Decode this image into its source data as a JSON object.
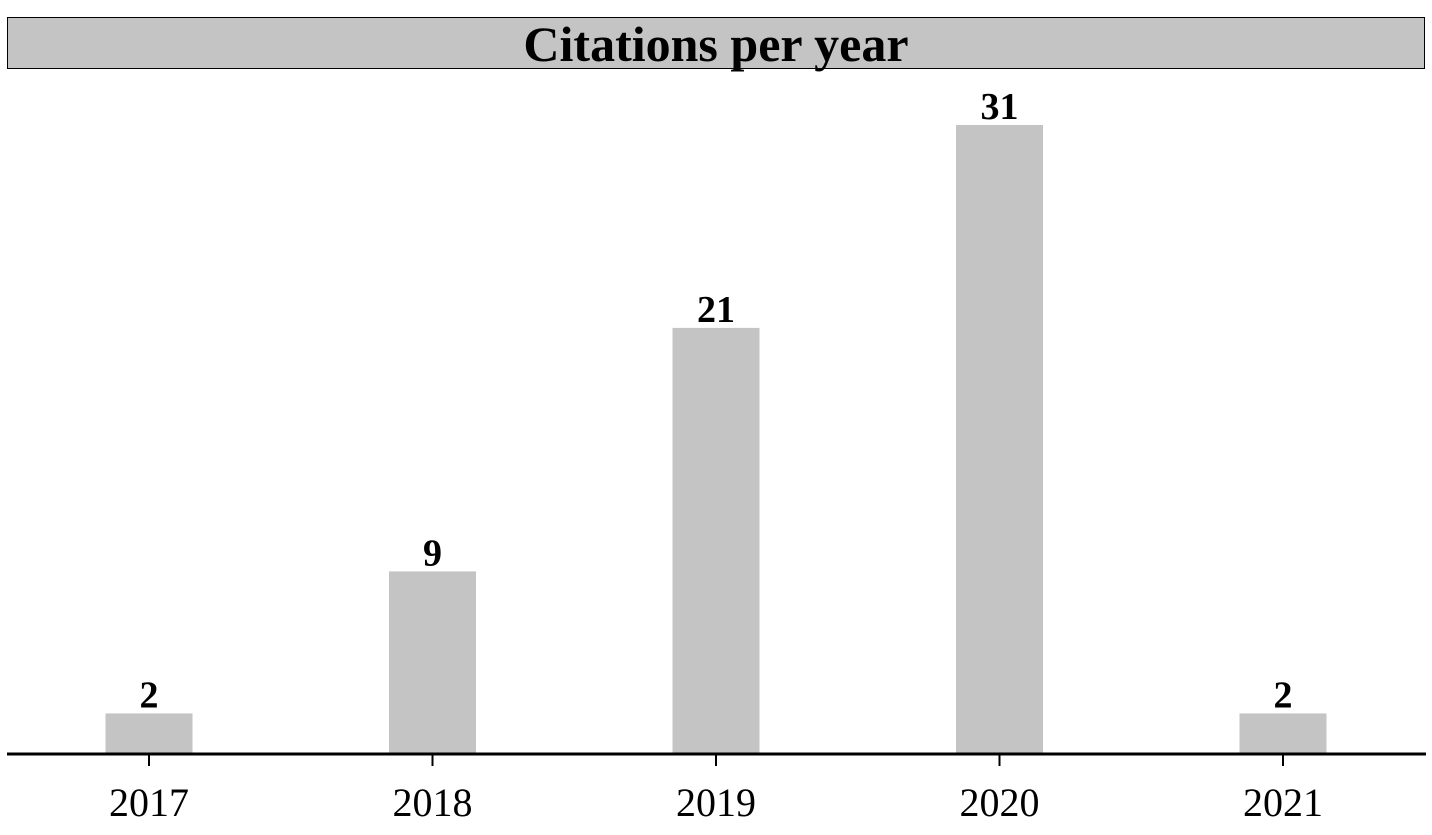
{
  "chart_data": {
    "type": "bar",
    "title": "Citations per year",
    "xlabel": "",
    "ylabel": "",
    "categories": [
      "2017",
      "2018",
      "2019",
      "2020",
      "2021"
    ],
    "values": [
      2,
      9,
      21,
      31,
      2
    ],
    "data_labels": [
      "2",
      "9",
      "21",
      "31",
      "2"
    ],
    "ylim": [
      0,
      31
    ],
    "grid": false,
    "bar_color": "#c4c4c4",
    "title_background": "#c4c4c4",
    "axis_color": "#000000"
  }
}
